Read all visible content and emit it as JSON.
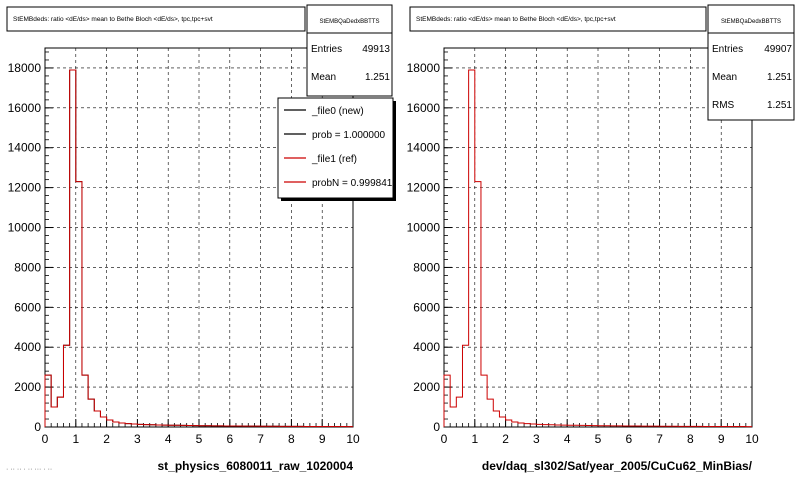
{
  "pads": [
    {
      "title": "StEMBdeds: ratio <dE/ds> mean to Bethe Bloch <dE/ds>, tpc,tpc+svt",
      "xlabel": "st_physics_6080011_raw_1020004",
      "stats": {
        "name": "StEMBQaDedxBBTTS",
        "rows": [
          {
            "label": "Entries",
            "value": "49913"
          },
          {
            "label": "Mean",
            "value": "1.251"
          }
        ]
      },
      "legend": [
        {
          "label": "_file0 (new)",
          "color": "#000000"
        },
        {
          "label": "prob = 1.000000",
          "color": "#000000"
        },
        {
          "label": "_file1 (ref)",
          "color": "#cc0000"
        },
        {
          "label": "probN = 0.999841",
          "color": "#cc0000"
        }
      ]
    },
    {
      "title": "StEMBdeds: ratio <dE/ds> mean to Bethe Bloch <dE/ds>, tpc,tpc+svt",
      "xlabel": "dev/daq_sl302/Sat/year_2005/CuCu62_MinBias/",
      "stats": {
        "name": "StEMBQaDedxBBTTS",
        "rows": [
          {
            "label": "Entries",
            "value": "49907"
          },
          {
            "label": "Mean",
            "value": "1.251"
          },
          {
            "label": "RMS",
            "value": "1.251"
          }
        ]
      }
    }
  ],
  "footnote": "· ·· ·· · ·· ··· · ··",
  "colors": {
    "hist_new": "#000000",
    "hist_ref": "#cc0000",
    "grid": "#000000"
  },
  "chart_data": [
    {
      "type": "bar",
      "title": "StEMBdeds: ratio <dE/ds> mean to Bethe Bloch <dE/ds>, tpc,tpc+svt",
      "xlabel": "st_physics_6080011_raw_1020004",
      "ylabel": "",
      "xlim": [
        0,
        10
      ],
      "ylim": [
        0,
        19000
      ],
      "xticks": [
        0,
        1,
        2,
        3,
        4,
        5,
        6,
        7,
        8,
        9,
        10
      ],
      "yticks": [
        0,
        2000,
        4000,
        6000,
        8000,
        10000,
        12000,
        14000,
        16000,
        18000
      ],
      "grid": true,
      "bin_width": 0.2,
      "bin_edges_start": 0,
      "series": [
        {
          "name": "_file0 (new)",
          "values": [
            2600,
            1000,
            1500,
            4100,
            17900,
            12300,
            2600,
            1400,
            800,
            500,
            350,
            250,
            200,
            170,
            150,
            130,
            120,
            110,
            100,
            95,
            90,
            85,
            80,
            75,
            70,
            65,
            60,
            58,
            55,
            52,
            50,
            48,
            46,
            44,
            42,
            40,
            38,
            36,
            34,
            32,
            30,
            29,
            28,
            27,
            26,
            25,
            24,
            23,
            22,
            21
          ]
        },
        {
          "name": "_file1 (ref)",
          "values": [
            2600,
            1000,
            1500,
            4100,
            17900,
            12300,
            2600,
            1400,
            800,
            500,
            350,
            250,
            200,
            170,
            150,
            130,
            120,
            110,
            100,
            95,
            90,
            85,
            80,
            75,
            70,
            65,
            60,
            58,
            55,
            52,
            50,
            48,
            46,
            44,
            42,
            40,
            38,
            36,
            34,
            32,
            30,
            29,
            28,
            27,
            26,
            25,
            24,
            23,
            22,
            21
          ]
        }
      ]
    },
    {
      "type": "bar",
      "title": "StEMBdeds: ratio <dE/ds> mean to Bethe Bloch <dE/ds>, tpc,tpc+svt",
      "xlabel": "dev/daq_sl302/Sat/year_2005/CuCu62_MinBias/",
      "ylabel": "",
      "xlim": [
        0,
        10
      ],
      "ylim": [
        0,
        19000
      ],
      "xticks": [
        0,
        1,
        2,
        3,
        4,
        5,
        6,
        7,
        8,
        9,
        10
      ],
      "yticks": [
        0,
        2000,
        4000,
        6000,
        8000,
        10000,
        12000,
        14000,
        16000,
        18000
      ],
      "grid": true,
      "bin_width": 0.2,
      "bin_edges_start": 0,
      "series": [
        {
          "name": "",
          "values": [
            2600,
            1000,
            1500,
            4100,
            17900,
            12300,
            2600,
            1400,
            800,
            500,
            350,
            250,
            200,
            170,
            150,
            130,
            120,
            110,
            100,
            95,
            90,
            85,
            80,
            75,
            70,
            65,
            60,
            58,
            55,
            52,
            50,
            48,
            46,
            44,
            42,
            40,
            38,
            36,
            34,
            32,
            30,
            29,
            28,
            27,
            26,
            25,
            24,
            23,
            22,
            21
          ]
        }
      ]
    }
  ]
}
